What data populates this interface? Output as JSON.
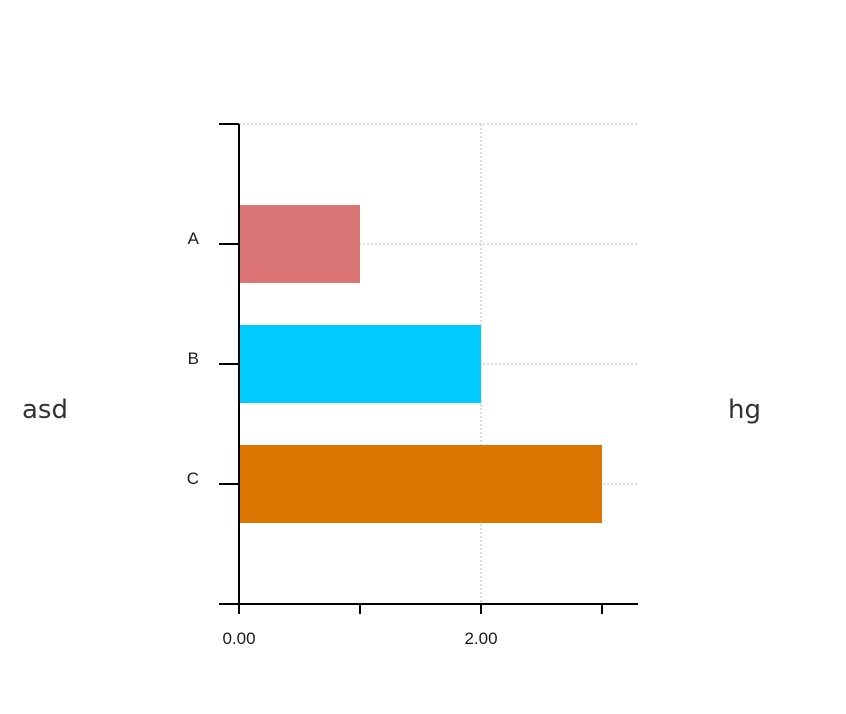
{
  "labels": {
    "left": "asd",
    "right": "hg"
  },
  "chart_data": {
    "type": "bar",
    "orientation": "horizontal",
    "categories": [
      "A",
      "B",
      "C"
    ],
    "values": [
      1,
      2,
      3
    ],
    "colors": [
      "#dc7575",
      "#00ccff",
      "#dc7600"
    ],
    "xlim": [
      0,
      3.3
    ],
    "x_ticks": [
      0,
      1,
      2,
      3
    ],
    "x_tick_labels": [
      "0.00",
      "",
      "2.00",
      ""
    ],
    "grid": true,
    "grid_style": "dotted",
    "legend": "none"
  }
}
